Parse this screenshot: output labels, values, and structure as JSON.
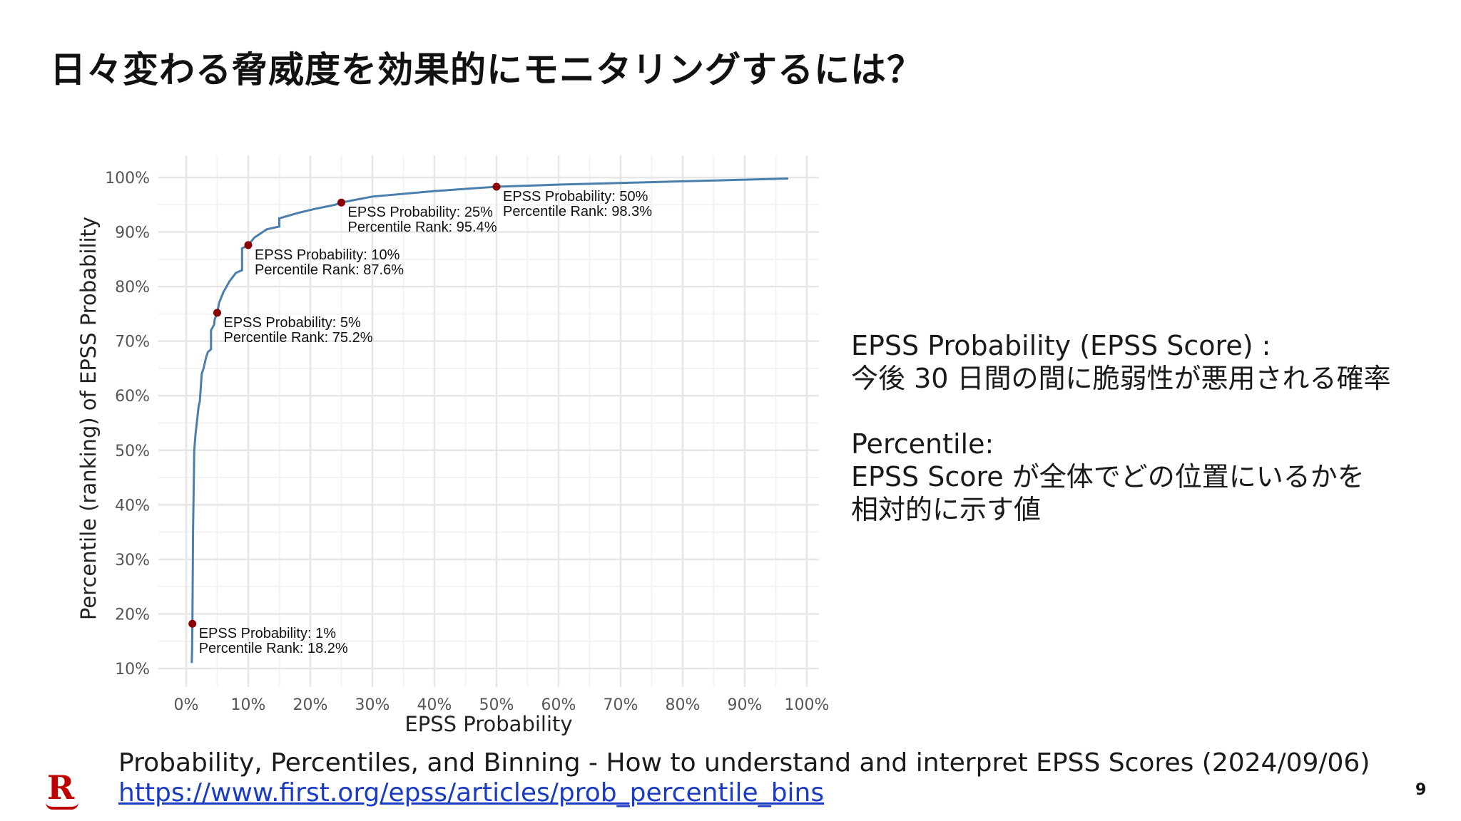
{
  "slide": {
    "title": "日々変わる脅威度を効果的にモニタリングするには？",
    "page_number": "9"
  },
  "side_text": {
    "line1": "EPSS Probability (EPSS Score) :",
    "line2": "今後 30 日間の間に脆弱性が悪用される確率",
    "line3": "Percentile:",
    "line4": "EPSS Score が全体でどの位置にいるかを",
    "line5": "相対的に示す値"
  },
  "source": {
    "text": "Probability, Percentiles, and Binning - How to understand and interpret EPSS Scores (2024/09/06)",
    "link": "https://www.first.org/epss/articles/prob_percentile_bins"
  },
  "logo": {
    "letter": "R"
  },
  "chart_data": {
    "type": "line",
    "xlabel": "EPSS Probability",
    "ylabel": "Percentile (ranking) of EPSS Probability",
    "xlim": [
      0,
      100
    ],
    "ylim": [
      10,
      100
    ],
    "x_ticks": [
      "0%",
      "10%",
      "20%",
      "30%",
      "40%",
      "50%",
      "60%",
      "70%",
      "80%",
      "90%",
      "100%"
    ],
    "y_ticks": [
      "10%",
      "20%",
      "30%",
      "40%",
      "50%",
      "60%",
      "70%",
      "80%",
      "90%",
      "100%"
    ],
    "grid": true,
    "line_color": "#4a7fab",
    "point_color": "#8b0000",
    "series": [
      {
        "x": [
          0.9,
          0.95,
          1,
          1.1,
          1.2,
          1.3,
          1.5,
          1.8,
          2,
          2.2,
          2.5,
          2.8,
          3,
          3.2,
          3.5,
          4,
          4,
          4.5,
          4.6,
          5,
          5.3,
          6,
          7,
          8,
          9,
          9,
          10,
          11,
          13,
          15,
          15,
          18,
          21,
          24,
          25,
          30,
          40,
          50,
          60,
          70,
          80,
          90,
          97
        ],
        "y": [
          11,
          14,
          18.2,
          35,
          42,
          50,
          53,
          56,
          58,
          59,
          64,
          65,
          66,
          67,
          68,
          68.5,
          72,
          73,
          74,
          75.2,
          77,
          79,
          81,
          82.5,
          83,
          87,
          87.6,
          89,
          90.5,
          91,
          92.5,
          93.5,
          94.3,
          95,
          95.4,
          96.5,
          97.5,
          98.3,
          98.7,
          99,
          99.3,
          99.6,
          99.8
        ]
      }
    ],
    "points": [
      {
        "x": 1,
        "y": 18.2,
        "label1": "EPSS Probability: 1%",
        "label2": "Percentile Rank: 18.2%"
      },
      {
        "x": 5,
        "y": 75.2,
        "label1": "EPSS Probability: 5%",
        "label2": "Percentile Rank: 75.2%"
      },
      {
        "x": 10,
        "y": 87.6,
        "label1": "EPSS Probability: 10%",
        "label2": "Percentile Rank: 87.6%"
      },
      {
        "x": 25,
        "y": 95.4,
        "label1": "EPSS Probability: 25%",
        "label2": "Percentile Rank: 95.4%"
      },
      {
        "x": 50,
        "y": 98.3,
        "label1": "EPSS Probability: 50%",
        "label2": "Percentile Rank: 98.3%"
      }
    ]
  }
}
